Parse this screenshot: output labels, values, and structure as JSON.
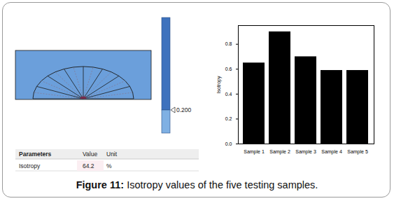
{
  "chart_data": {
    "type": "bar",
    "y_label": "Isotropy",
    "categories": [
      "Sample 1",
      "Sample 2",
      "Sample 3",
      "Sample 4",
      "Sample 5"
    ],
    "values": [
      0.65,
      0.9,
      0.7,
      0.59,
      0.59
    ],
    "color": "#000000",
    "ylim": [
      0,
      0.95
    ],
    "yticks": [
      {
        "value": 0,
        "label": "0.0"
      },
      {
        "value": 0.2,
        "label": "0.2"
      },
      {
        "value": 0.4,
        "label": "0.4"
      },
      {
        "value": 0.6,
        "label": "0.6"
      },
      {
        "value": 0.8,
        "label": "0.8"
      }
    ]
  },
  "screenshot": {
    "colorbar": {
      "range": [
        0,
        1
      ],
      "marker": {
        "value": 0.2,
        "label": "0.200"
      }
    },
    "table": {
      "header": [
        "Parameters",
        "Value",
        "Unit"
      ],
      "rows": [
        [
          "Isotropy",
          64.2,
          "%"
        ]
      ]
    }
  },
  "caption": {
    "label": "Figure 11:",
    "text": "Isotropy values of the five testing samples."
  }
}
